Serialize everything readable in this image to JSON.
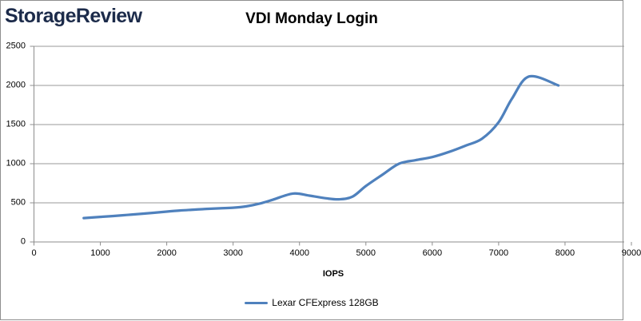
{
  "header": {
    "logo": "StorageReview",
    "logo_color": "#1c2b4a"
  },
  "chart_data": {
    "type": "line",
    "title": "VDI Monday Login",
    "xlabel": "IOPS",
    "ylabel": "",
    "xlim": [
      0,
      9000
    ],
    "ylim": [
      0,
      2500
    ],
    "x_ticks": [
      0,
      1000,
      2000,
      3000,
      4000,
      5000,
      6000,
      7000,
      8000,
      9000
    ],
    "y_ticks": [
      0,
      500,
      1000,
      1500,
      2000,
      2500
    ],
    "grid": "horizontal",
    "legend_position": "bottom",
    "series": [
      {
        "name": "Lexar CFExpress 128GB",
        "color": "#4F81BD",
        "smooth": true,
        "points": [
          [
            750,
            305
          ],
          [
            1000,
            320
          ],
          [
            1200,
            332
          ],
          [
            1400,
            345
          ],
          [
            1600,
            358
          ],
          [
            1800,
            372
          ],
          [
            2000,
            388
          ],
          [
            2200,
            402
          ],
          [
            2400,
            412
          ],
          [
            2600,
            422
          ],
          [
            2800,
            430
          ],
          [
            3000,
            437
          ],
          [
            3200,
            455
          ],
          [
            3400,
            490
          ],
          [
            3600,
            540
          ],
          [
            3900,
            618
          ],
          [
            4150,
            592
          ],
          [
            4400,
            558
          ],
          [
            4600,
            545
          ],
          [
            4800,
            580
          ],
          [
            5000,
            715
          ],
          [
            5250,
            860
          ],
          [
            5500,
            1000
          ],
          [
            5750,
            1045
          ],
          [
            6000,
            1085
          ],
          [
            6250,
            1150
          ],
          [
            6500,
            1230
          ],
          [
            6750,
            1320
          ],
          [
            7000,
            1530
          ],
          [
            7200,
            1830
          ],
          [
            7460,
            2115
          ],
          [
            7900,
            2000
          ]
        ]
      }
    ]
  },
  "colors": {
    "gridline": "#9a9a9a",
    "axis": "#8c8c8c",
    "tick": "#8c8c8c"
  }
}
